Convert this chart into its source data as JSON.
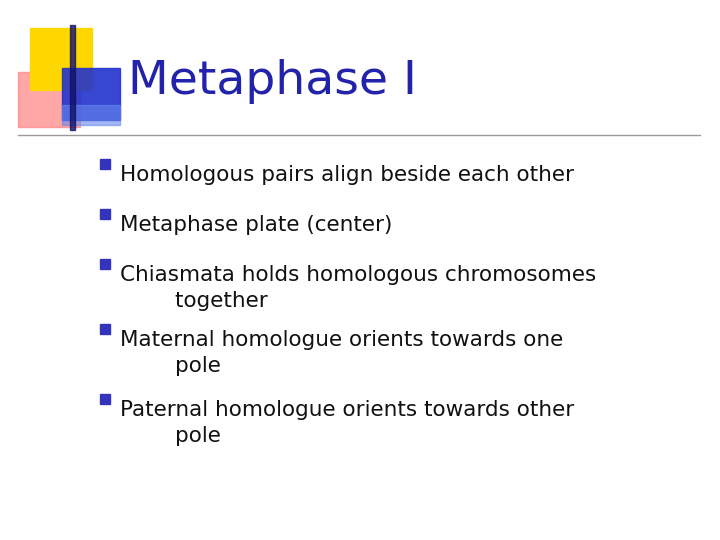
{
  "title": "Metaphase I",
  "title_color": "#2222AA",
  "title_fontsize": 34,
  "background_color": "#FFFFFF",
  "bullet_points": [
    "Homologous pairs align beside each other",
    "Metaphase plate (center)",
    "Chiasmata holds homologous chromosomes\n    together",
    "Maternal homologue orients towards one\n    pole",
    "Paternal homologue orients towards other\n    pole"
  ],
  "bullet_color": "#111111",
  "bullet_fontsize": 15.5,
  "bullet_marker_color": "#3333BB",
  "line_color": "#999999",
  "logo_yellow": "#FFD700",
  "logo_red_light": "#FF8888",
  "logo_blue": "#2233CC",
  "logo_blue_light": "#6688EE"
}
